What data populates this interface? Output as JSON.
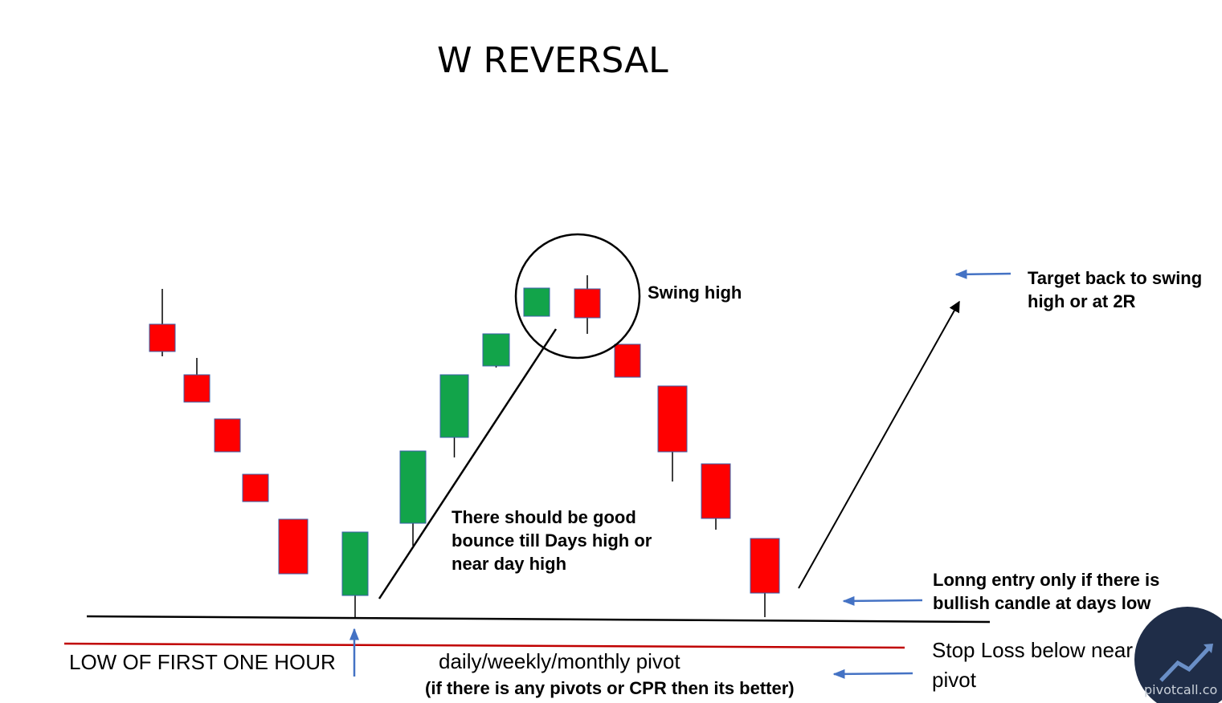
{
  "title": "W REVERSAL",
  "annotations": {
    "swing_high": "Swing high",
    "target_line1": "Target back to swing",
    "target_line2": "high or at 2R",
    "bounce_line1": "There should be good",
    "bounce_line2": "bounce till Days high or",
    "bounce_line3": "near day high",
    "entry_line1": "Lonng entry only if there is",
    "entry_line2": "bullish candle at days low",
    "stoploss_line1": "Stop Loss below near",
    "stoploss_line2": "pivot",
    "low_first_hour": "LOW OF FIRST ONE HOUR",
    "pivot_label": "daily/weekly/monthly pivot",
    "pivot_note": "(if there is any pivots or CPR then its better)"
  },
  "watermark": "pivotcall.co",
  "colors": {
    "bull": "#12a44a",
    "bear": "#ff0000",
    "candle_border": "#3a5fa8",
    "pivot_line": "#c00000",
    "arrow_blue": "#4472c4",
    "ink": "#000000"
  },
  "candles": [
    {
      "dir": "bear"
    },
    {
      "dir": "bear"
    },
    {
      "dir": "bear"
    },
    {
      "dir": "bear"
    },
    {
      "dir": "bear"
    },
    {
      "dir": "bull"
    },
    {
      "dir": "bull"
    },
    {
      "dir": "bull"
    },
    {
      "dir": "bull"
    },
    {
      "dir": "bull"
    },
    {
      "dir": "bear"
    },
    {
      "dir": "bear"
    },
    {
      "dir": "bear"
    },
    {
      "dir": "bear"
    },
    {
      "dir": "bear"
    }
  ]
}
